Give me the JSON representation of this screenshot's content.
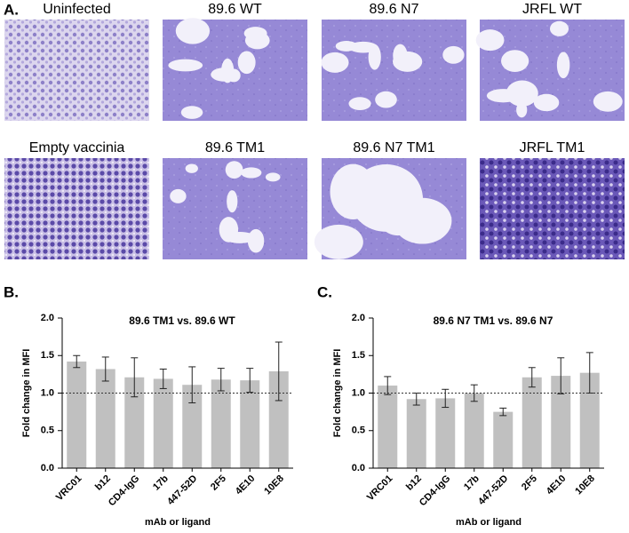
{
  "panel_a": {
    "label": "A.",
    "images": [
      "Uninfected",
      "89.6 WT",
      "89.6 N7",
      "JRFL WT",
      "Empty vaccinia",
      "89.6 TM1",
      "89.6 N7 TM1",
      "JRFL TM1"
    ]
  },
  "chart_data": [
    {
      "type": "bar",
      "panel_label": "B.",
      "title": "89.6 TM1 vs. 89.6 WT",
      "ylabel": "Fold change in MFI",
      "xlabel": "mAb or ligand",
      "categories": [
        "VRC01",
        "b12",
        "CD4-IgG",
        "17b",
        "447-52D",
        "2F5",
        "4E10",
        "10E8"
      ],
      "values": [
        1.42,
        1.32,
        1.21,
        1.19,
        1.11,
        1.18,
        1.17,
        1.29
      ],
      "errors": [
        0.08,
        0.16,
        0.26,
        0.13,
        0.24,
        0.15,
        0.16,
        0.39
      ],
      "color": "#c0c0c0",
      "ylim": [
        0,
        2
      ],
      "yticks": [
        {
          "value": 0,
          "label": "0.0"
        },
        0.5,
        {
          "value": 1,
          "label": "1.0"
        },
        1.5,
        {
          "value": 2,
          "label": "2.0"
        }
      ],
      "reference_line": 1
    },
    {
      "type": "bar",
      "panel_label": "C.",
      "title": "89.6 N7 TM1 vs. 89.6 N7",
      "ylabel": "Fold change in MFI",
      "xlabel": "mAb or ligand",
      "categories": [
        "VRC01",
        "b12",
        "CD4-IgG",
        "17b",
        "447-52D",
        "2F5",
        "4E10",
        "10E8"
      ],
      "values": [
        1.1,
        0.92,
        0.93,
        1.0,
        0.75,
        1.21,
        1.23,
        1.27
      ],
      "errors": [
        0.12,
        0.08,
        0.12,
        0.11,
        0.05,
        0.13,
        0.24,
        0.27
      ],
      "color": "#c0c0c0",
      "ylim": [
        0,
        2
      ],
      "yticks": [
        {
          "value": 0,
          "label": "0.0"
        },
        0.5,
        {
          "value": 1,
          "label": "1.0"
        },
        1.5,
        {
          "value": 2,
          "label": "2.0"
        }
      ],
      "reference_line": 1
    }
  ]
}
